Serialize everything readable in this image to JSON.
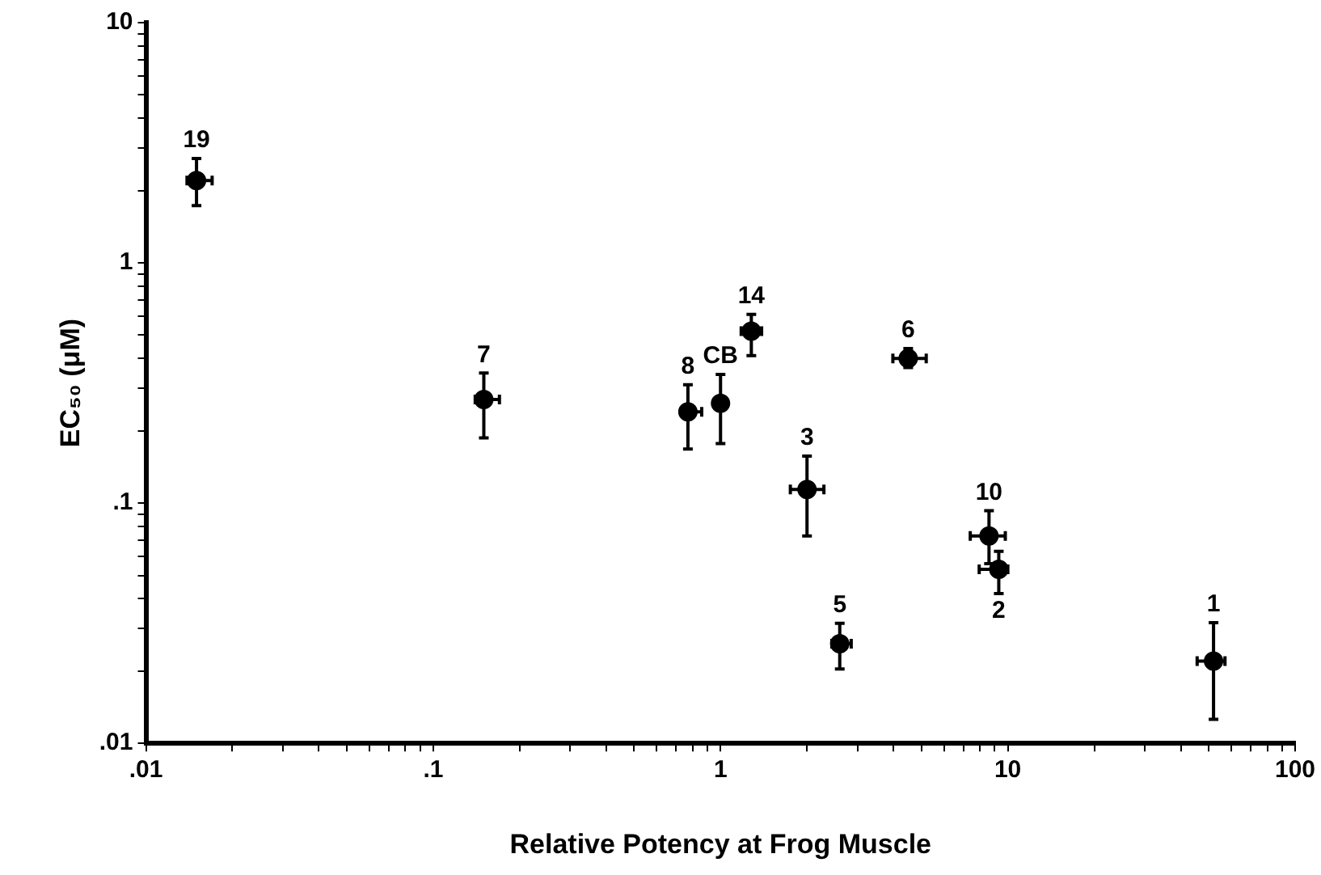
{
  "chart_data": {
    "type": "scatter",
    "xlabel": "Relative Potency at Frog Muscle",
    "ylabel": "EC₅₀ (μM)",
    "log": "xy",
    "grid": false,
    "legend": false,
    "marker": "circle",
    "xlim": [
      0.01,
      100
    ],
    "ylim": [
      0.01,
      10
    ],
    "xticks": [
      {
        "value": 0.01,
        "label": ".01"
      },
      {
        "value": 0.02,
        "label": null
      },
      {
        "value": 0.03,
        "label": null
      },
      {
        "value": 0.04,
        "label": null
      },
      {
        "value": 0.05,
        "label": null
      },
      {
        "value": 0.06,
        "label": null
      },
      {
        "value": 0.07,
        "label": null
      },
      {
        "value": 0.08,
        "label": null
      },
      {
        "value": 0.09,
        "label": null
      },
      {
        "value": 0.1,
        "label": ".1"
      },
      {
        "value": 0.2,
        "label": null
      },
      {
        "value": 0.3,
        "label": null
      },
      {
        "value": 0.4,
        "label": null
      },
      {
        "value": 0.5,
        "label": null
      },
      {
        "value": 0.6,
        "label": null
      },
      {
        "value": 0.7,
        "label": null
      },
      {
        "value": 0.8,
        "label": null
      },
      {
        "value": 0.9,
        "label": null
      },
      1,
      {
        "value": 2,
        "label": null
      },
      {
        "value": 3,
        "label": null
      },
      {
        "value": 4,
        "label": null
      },
      {
        "value": 5,
        "label": null
      },
      {
        "value": 6,
        "label": null
      },
      {
        "value": 7,
        "label": null
      },
      {
        "value": 8,
        "label": null
      },
      {
        "value": 9,
        "label": null
      },
      10,
      {
        "value": 20,
        "label": null
      },
      {
        "value": 30,
        "label": null
      },
      {
        "value": 40,
        "label": null
      },
      {
        "value": 50,
        "label": null
      },
      {
        "value": 60,
        "label": null
      },
      {
        "value": 70,
        "label": null
      },
      {
        "value": 80,
        "label": null
      },
      {
        "value": 90,
        "label": null
      },
      100
    ],
    "yticks": [
      {
        "value": 0.01,
        "label": ".01"
      },
      {
        "value": 0.02,
        "label": null
      },
      {
        "value": 0.03,
        "label": null
      },
      {
        "value": 0.04,
        "label": null
      },
      {
        "value": 0.05,
        "label": null
      },
      {
        "value": 0.06,
        "label": null
      },
      {
        "value": 0.07,
        "label": null
      },
      {
        "value": 0.08,
        "label": null
      },
      {
        "value": 0.09,
        "label": null
      },
      {
        "value": 0.1,
        "label": ".1"
      },
      {
        "value": 0.2,
        "label": null
      },
      {
        "value": 0.3,
        "label": null
      },
      {
        "value": 0.4,
        "label": null
      },
      {
        "value": 0.5,
        "label": null
      },
      {
        "value": 0.6,
        "label": null
      },
      {
        "value": 0.7,
        "label": null
      },
      {
        "value": 0.8,
        "label": null
      },
      {
        "value": 0.9,
        "label": null
      },
      1,
      {
        "value": 2,
        "label": null
      },
      {
        "value": 3,
        "label": null
      },
      {
        "value": 4,
        "label": null
      },
      {
        "value": 5,
        "label": null
      },
      {
        "value": 6,
        "label": null
      },
      {
        "value": 7,
        "label": null
      },
      {
        "value": 8,
        "label": null
      },
      {
        "value": 9,
        "label": null
      },
      10
    ],
    "series": [
      {
        "color": "#000000",
        "x": [
          0.015,
          0.15,
          0.77,
          1.0,
          1.28,
          4.5,
          2.0,
          2.6,
          8.6,
          9.3,
          52
        ],
        "values": [
          2.2,
          0.27,
          0.24,
          0.26,
          0.52,
          0.4,
          0.114,
          0.026,
          0.073,
          0.053,
          0.022
        ],
        "errors": [
          [
            1.73,
            2.72
          ],
          [
            0.187,
            0.348
          ],
          [
            0.168,
            0.311
          ],
          [
            0.177,
            0.343
          ],
          [
            0.411,
            0.61
          ],
          [
            0.367,
            0.44
          ],
          [
            0.073,
            0.157
          ],
          [
            0.0204,
            0.0316
          ],
          [
            0.056,
            0.093
          ],
          [
            0.042,
            0.063
          ],
          [
            0.0126,
            0.0318
          ]
        ],
        "xerrors": [
          [
            0.0139,
            0.017
          ],
          [
            0.14,
            0.17
          ],
          [
            0.73,
            0.86
          ],
          null,
          [
            1.18,
            1.39
          ],
          [
            3.98,
            5.2
          ],
          [
            1.75,
            2.29
          ],
          [
            2.44,
            2.85
          ],
          [
            7.4,
            9.8
          ],
          [
            7.95,
            10
          ],
          [
            45.6,
            57
          ]
        ]
      }
    ],
    "annotations": [
      {
        "text": "19",
        "x": 0.015,
        "y": 2.2
      },
      {
        "text": "7",
        "x": 0.15,
        "y": 0.27
      },
      {
        "text": "8",
        "x": 0.77,
        "y": 0.24
      },
      {
        "text": "CB",
        "x": 1.0,
        "y": 0.26
      },
      {
        "text": "14",
        "x": 1.28,
        "y": 0.52
      },
      {
        "text": "6",
        "x": 4.5,
        "y": 0.4
      },
      {
        "text": "3",
        "x": 2.0,
        "y": 0.114
      },
      {
        "text": "5",
        "x": 2.6,
        "y": 0.026
      },
      {
        "text": "10",
        "x": 8.6,
        "y": 0.073
      },
      {
        "text": "2",
        "x": 9.3,
        "y": 0.053
      },
      {
        "text": "1",
        "x": 52,
        "y": 0.022
      }
    ]
  }
}
